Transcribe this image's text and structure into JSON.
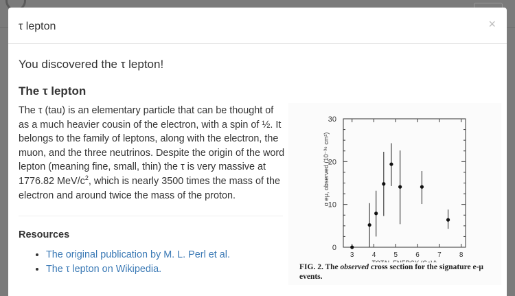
{
  "modal": {
    "title": "τ lepton",
    "close_icon": "×",
    "discovered": "You discovered the τ lepton!",
    "heading": "The τ lepton",
    "paragraph_a": "The τ (tau) is an elementary particle that can be thought of as a much heavier cousin of the electron, with a spin of ½. It belongs to the family of leptons, along with the electron, the muon, and the three neutrinos. Despite the origin of the word lepton (meaning fine, small, thin) the τ is very massive at 1776.82 MeV/c",
    "paragraph_sup": "2",
    "paragraph_b": ", which is nearly 3500 times the mass of the electron and around twice the mass of the proton.",
    "resources_heading": "Resources",
    "resources": [
      {
        "label": "The original publication by M. L. Perl et al."
      },
      {
        "label": "The τ lepton on Wikipedia."
      }
    ],
    "link_color": "#3a79b5",
    "figure": {
      "caption_prefix": "FIG. 2.  The ",
      "caption_italic": "observed",
      "caption_suffix": " cross section for the signature e-μ events."
    }
  },
  "chart_data": {
    "type": "scatter",
    "xlabel": "TOTAL ENERGY (GeV)",
    "ylabel": "σ eμ, observed (10⁻³⁶ cm²)",
    "xlim": [
      2.6,
      8.2
    ],
    "ylim": [
      0,
      30
    ],
    "xticks": [
      "3",
      "4",
      "5",
      "6",
      "7",
      "8"
    ],
    "yticks": [
      "0",
      "10",
      "20",
      "30"
    ],
    "points": [
      {
        "x": 3.0,
        "y": 0,
        "ylo": 0,
        "yhi": 0
      },
      {
        "x": 3.8,
        "y": 5.2,
        "ylo": 0,
        "yhi": 10.3
      },
      {
        "x": 4.1,
        "y": 7.9,
        "ylo": 2.5,
        "yhi": 13.2
      },
      {
        "x": 4.45,
        "y": 14.8,
        "ylo": 7.3,
        "yhi": 22.3
      },
      {
        "x": 4.8,
        "y": 19.4,
        "ylo": 14.3,
        "yhi": 24.3
      },
      {
        "x": 5.2,
        "y": 14.1,
        "ylo": 5.4,
        "yhi": 22.6
      },
      {
        "x": 6.2,
        "y": 14.1,
        "ylo": 10.1,
        "yhi": 17.8
      },
      {
        "x": 7.4,
        "y": 6.4,
        "ylo": 4.3,
        "yhi": 8.8
      }
    ]
  }
}
